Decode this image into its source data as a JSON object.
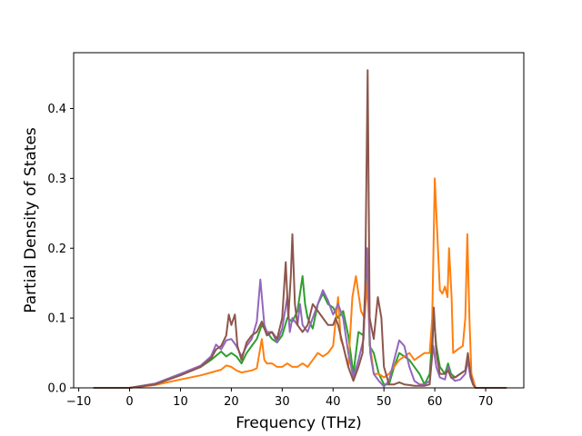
{
  "chart_data": {
    "type": "line",
    "title": "",
    "xlabel": "Frequency (THz)",
    "ylabel": "Partial Density of States",
    "xlim": [
      -11,
      77.5
    ],
    "ylim": [
      0,
      0.48
    ],
    "x_ticks": [
      -10,
      0,
      10,
      20,
      30,
      40,
      50,
      60,
      70
    ],
    "x_tick_labels": [
      "−10",
      "0",
      "10",
      "20",
      "30",
      "40",
      "50",
      "60",
      "70"
    ],
    "y_ticks": [
      0.0,
      0.1,
      0.2,
      0.3,
      0.4
    ],
    "y_tick_labels": [
      "0.0",
      "0.1",
      "0.2",
      "0.3",
      "0.4"
    ],
    "grid": false,
    "legend": "none",
    "colors": {
      "green": "#2ca02c",
      "orange": "#ff7f0e",
      "purple": "#9467bd",
      "brown": "#8c564b"
    },
    "series": [
      {
        "color": "#2ca02c",
        "points": [
          [
            -7,
            0
          ],
          [
            0,
            0
          ],
          [
            5,
            0.006
          ],
          [
            10,
            0.02
          ],
          [
            14,
            0.03
          ],
          [
            16,
            0.04
          ],
          [
            18,
            0.052
          ],
          [
            19,
            0.045
          ],
          [
            20,
            0.05
          ],
          [
            21,
            0.045
          ],
          [
            22,
            0.035
          ],
          [
            23,
            0.05
          ],
          [
            24,
            0.06
          ],
          [
            25,
            0.07
          ],
          [
            26,
            0.09
          ],
          [
            27,
            0.08
          ],
          [
            28,
            0.07
          ],
          [
            29,
            0.065
          ],
          [
            30,
            0.075
          ],
          [
            31,
            0.1
          ],
          [
            32,
            0.095
          ],
          [
            33,
            0.11
          ],
          [
            34,
            0.16
          ],
          [
            34.5,
            0.12
          ],
          [
            35,
            0.1
          ],
          [
            36,
            0.085
          ],
          [
            37,
            0.12
          ],
          [
            38,
            0.135
          ],
          [
            39,
            0.12
          ],
          [
            40,
            0.115
          ],
          [
            41,
            0.1
          ],
          [
            42,
            0.11
          ],
          [
            43,
            0.075
          ],
          [
            44,
            0.02
          ],
          [
            45,
            0.08
          ],
          [
            46,
            0.075
          ],
          [
            46.7,
            0.2
          ],
          [
            47.2,
            0.06
          ],
          [
            48,
            0.05
          ],
          [
            49,
            0.02
          ],
          [
            50,
            0.005
          ],
          [
            51,
            0.005
          ],
          [
            52,
            0.03
          ],
          [
            53,
            0.05
          ],
          [
            54,
            0.045
          ],
          [
            55,
            0.04
          ],
          [
            56,
            0.03
          ],
          [
            57,
            0.02
          ],
          [
            58,
            0.005
          ],
          [
            59,
            0.02
          ],
          [
            59.8,
            0.1
          ],
          [
            60.3,
            0.06
          ],
          [
            61,
            0.03
          ],
          [
            62,
            0.02
          ],
          [
            62.6,
            0.035
          ],
          [
            63.2,
            0.02
          ],
          [
            64,
            0.015
          ],
          [
            65,
            0.02
          ],
          [
            66,
            0.025
          ],
          [
            66.5,
            0.045
          ],
          [
            67,
            0.02
          ],
          [
            67.5,
            0.005
          ],
          [
            68,
            0
          ],
          [
            74,
            0
          ]
        ]
      },
      {
        "color": "#ff7f0e",
        "points": [
          [
            -7,
            0
          ],
          [
            0,
            0
          ],
          [
            5,
            0.004
          ],
          [
            10,
            0.012
          ],
          [
            14,
            0.018
          ],
          [
            16,
            0.022
          ],
          [
            18,
            0.026
          ],
          [
            19,
            0.032
          ],
          [
            20,
            0.03
          ],
          [
            21,
            0.025
          ],
          [
            22,
            0.022
          ],
          [
            24,
            0.025
          ],
          [
            25,
            0.028
          ],
          [
            26,
            0.07
          ],
          [
            26.5,
            0.04
          ],
          [
            27,
            0.035
          ],
          [
            28,
            0.035
          ],
          [
            29,
            0.03
          ],
          [
            30,
            0.03
          ],
          [
            31,
            0.035
          ],
          [
            32,
            0.03
          ],
          [
            33,
            0.03
          ],
          [
            34,
            0.035
          ],
          [
            35,
            0.03
          ],
          [
            36,
            0.04
          ],
          [
            37,
            0.05
          ],
          [
            38,
            0.045
          ],
          [
            39,
            0.05
          ],
          [
            40,
            0.06
          ],
          [
            41,
            0.13
          ],
          [
            41.5,
            0.07
          ],
          [
            42,
            0.06
          ],
          [
            43,
            0.03
          ],
          [
            43.8,
            0.13
          ],
          [
            44.5,
            0.16
          ],
          [
            45.5,
            0.11
          ],
          [
            46.2,
            0.1
          ],
          [
            46.7,
            0.15
          ],
          [
            47.3,
            0.06
          ],
          [
            48,
            0.02
          ],
          [
            49,
            0.02
          ],
          [
            50,
            0.015
          ],
          [
            51,
            0.02
          ],
          [
            52,
            0.03
          ],
          [
            53,
            0.04
          ],
          [
            54,
            0.045
          ],
          [
            55,
            0.05
          ],
          [
            55.5,
            0.045
          ],
          [
            56,
            0.04
          ],
          [
            57,
            0.045
          ],
          [
            58,
            0.05
          ],
          [
            59,
            0.05
          ],
          [
            59.5,
            0.1
          ],
          [
            60,
            0.3
          ],
          [
            60.5,
            0.22
          ],
          [
            61,
            0.14
          ],
          [
            61.5,
            0.135
          ],
          [
            62,
            0.145
          ],
          [
            62.5,
            0.13
          ],
          [
            62.8,
            0.2
          ],
          [
            63.3,
            0.13
          ],
          [
            63.6,
            0.05
          ],
          [
            64.5,
            0.055
          ],
          [
            65.5,
            0.06
          ],
          [
            66,
            0.1
          ],
          [
            66.4,
            0.22
          ],
          [
            66.8,
            0.1
          ],
          [
            67.2,
            0.02
          ],
          [
            68,
            0
          ],
          [
            74,
            0
          ]
        ]
      },
      {
        "color": "#9467bd",
        "points": [
          [
            -7,
            0
          ],
          [
            0,
            0
          ],
          [
            5,
            0.006
          ],
          [
            10,
            0.02
          ],
          [
            14,
            0.032
          ],
          [
            16,
            0.045
          ],
          [
            17,
            0.062
          ],
          [
            18,
            0.055
          ],
          [
            19,
            0.068
          ],
          [
            20,
            0.07
          ],
          [
            21,
            0.06
          ],
          [
            22,
            0.045
          ],
          [
            23,
            0.06
          ],
          [
            24,
            0.07
          ],
          [
            25,
            0.095
          ],
          [
            25.7,
            0.155
          ],
          [
            26.5,
            0.09
          ],
          [
            27,
            0.08
          ],
          [
            28,
            0.08
          ],
          [
            29,
            0.065
          ],
          [
            30,
            0.085
          ],
          [
            31,
            0.13
          ],
          [
            31.5,
            0.08
          ],
          [
            32,
            0.1
          ],
          [
            33,
            0.09
          ],
          [
            33.5,
            0.12
          ],
          [
            34,
            0.09
          ],
          [
            35,
            0.08
          ],
          [
            36,
            0.1
          ],
          [
            37,
            0.12
          ],
          [
            38,
            0.14
          ],
          [
            39,
            0.125
          ],
          [
            40,
            0.105
          ],
          [
            41,
            0.12
          ],
          [
            42,
            0.1
          ],
          [
            43,
            0.05
          ],
          [
            44,
            0.015
          ],
          [
            45,
            0.04
          ],
          [
            46,
            0.07
          ],
          [
            46.7,
            0.2
          ],
          [
            47.3,
            0.05
          ],
          [
            48,
            0.02
          ],
          [
            49,
            0.01
          ],
          [
            50,
            0.002
          ],
          [
            51,
            0.01
          ],
          [
            52,
            0.04
          ],
          [
            53,
            0.068
          ],
          [
            54,
            0.06
          ],
          [
            55,
            0.03
          ],
          [
            56,
            0.01
          ],
          [
            57,
            0.005
          ],
          [
            58,
            0.005
          ],
          [
            59,
            0.01
          ],
          [
            59.7,
            0.06
          ],
          [
            60.3,
            0.03
          ],
          [
            61,
            0.015
          ],
          [
            62,
            0.012
          ],
          [
            62.6,
            0.03
          ],
          [
            63.2,
            0.015
          ],
          [
            64,
            0.01
          ],
          [
            65,
            0.012
          ],
          [
            66,
            0.02
          ],
          [
            66.5,
            0.04
          ],
          [
            67,
            0.015
          ],
          [
            67.5,
            0.005
          ],
          [
            68,
            0
          ],
          [
            74,
            0
          ]
        ]
      },
      {
        "color": "#8c564b",
        "points": [
          [
            -7,
            0
          ],
          [
            0,
            0
          ],
          [
            5,
            0.005
          ],
          [
            10,
            0.018
          ],
          [
            14,
            0.03
          ],
          [
            16,
            0.042
          ],
          [
            17,
            0.055
          ],
          [
            18,
            0.06
          ],
          [
            19,
            0.075
          ],
          [
            19.5,
            0.105
          ],
          [
            20,
            0.09
          ],
          [
            20.7,
            0.105
          ],
          [
            21.2,
            0.06
          ],
          [
            22,
            0.04
          ],
          [
            23,
            0.065
          ],
          [
            24,
            0.075
          ],
          [
            25,
            0.08
          ],
          [
            26,
            0.095
          ],
          [
            26.5,
            0.085
          ],
          [
            27,
            0.075
          ],
          [
            28,
            0.08
          ],
          [
            29,
            0.07
          ],
          [
            30,
            0.1
          ],
          [
            30.7,
            0.18
          ],
          [
            31.2,
            0.1
          ],
          [
            31.7,
            0.16
          ],
          [
            32,
            0.22
          ],
          [
            32.5,
            0.12
          ],
          [
            33,
            0.09
          ],
          [
            34,
            0.08
          ],
          [
            35,
            0.09
          ],
          [
            36,
            0.12
          ],
          [
            37,
            0.11
          ],
          [
            38,
            0.1
          ],
          [
            39,
            0.09
          ],
          [
            40,
            0.09
          ],
          [
            40.5,
            0.1
          ],
          [
            41,
            0.09
          ],
          [
            42,
            0.06
          ],
          [
            43,
            0.03
          ],
          [
            44,
            0.01
          ],
          [
            45,
            0.03
          ],
          [
            45.8,
            0.05
          ],
          [
            46.3,
            0.14
          ],
          [
            46.8,
            0.455
          ],
          [
            47.2,
            0.1
          ],
          [
            48,
            0.07
          ],
          [
            48.8,
            0.13
          ],
          [
            49.5,
            0.1
          ],
          [
            50,
            0.03
          ],
          [
            51,
            0.005
          ],
          [
            52,
            0.005
          ],
          [
            53,
            0.008
          ],
          [
            54,
            0.005
          ],
          [
            55,
            0.004
          ],
          [
            56,
            0.003
          ],
          [
            57,
            0.003
          ],
          [
            58,
            0.003
          ],
          [
            59,
            0.005
          ],
          [
            59.5,
            0.05
          ],
          [
            59.8,
            0.115
          ],
          [
            60.3,
            0.05
          ],
          [
            61,
            0.02
          ],
          [
            62,
            0.02
          ],
          [
            62.6,
            0.025
          ],
          [
            63.2,
            0.015
          ],
          [
            64,
            0.015
          ],
          [
            65,
            0.02
          ],
          [
            66,
            0.025
          ],
          [
            66.5,
            0.05
          ],
          [
            67,
            0.02
          ],
          [
            67.5,
            0.005
          ],
          [
            68,
            0
          ],
          [
            74,
            0
          ]
        ]
      }
    ]
  }
}
